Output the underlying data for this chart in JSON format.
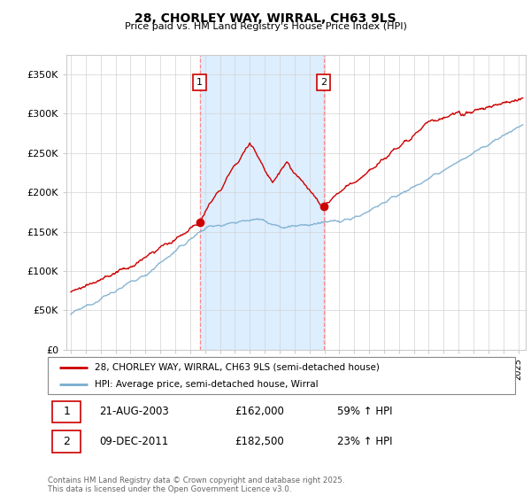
{
  "title": "28, CHORLEY WAY, WIRRAL, CH63 9LS",
  "subtitle": "Price paid vs. HM Land Registry's House Price Index (HPI)",
  "ylabel_ticks": [
    "£0",
    "£50K",
    "£100K",
    "£150K",
    "£200K",
    "£250K",
    "£300K",
    "£350K"
  ],
  "ytick_vals": [
    0,
    50000,
    100000,
    150000,
    200000,
    250000,
    300000,
    350000
  ],
  "ylim": [
    0,
    375000
  ],
  "xlim_start": 1994.7,
  "xlim_end": 2025.5,
  "sale1_date": 2003.64,
  "sale1_price": 162000,
  "sale1_label": "1",
  "sale2_date": 2011.94,
  "sale2_price": 182500,
  "sale2_label": "2",
  "red_line_color": "#cc0000",
  "blue_line_color": "#7aadcf",
  "shaded_color": "#ddeeff",
  "vline_color": "#ff8888",
  "legend_label_red": "28, CHORLEY WAY, WIRRAL, CH63 9LS (semi-detached house)",
  "legend_label_blue": "HPI: Average price, semi-detached house, Wirral",
  "info1_label": "1",
  "info1_date": "21-AUG-2003",
  "info1_price": "£162,000",
  "info1_hpi": "59% ↑ HPI",
  "info2_label": "2",
  "info2_date": "09-DEC-2011",
  "info2_price": "£182,500",
  "info2_hpi": "23% ↑ HPI",
  "footer": "Contains HM Land Registry data © Crown copyright and database right 2025.\nThis data is licensed under the Open Government Licence v3.0."
}
